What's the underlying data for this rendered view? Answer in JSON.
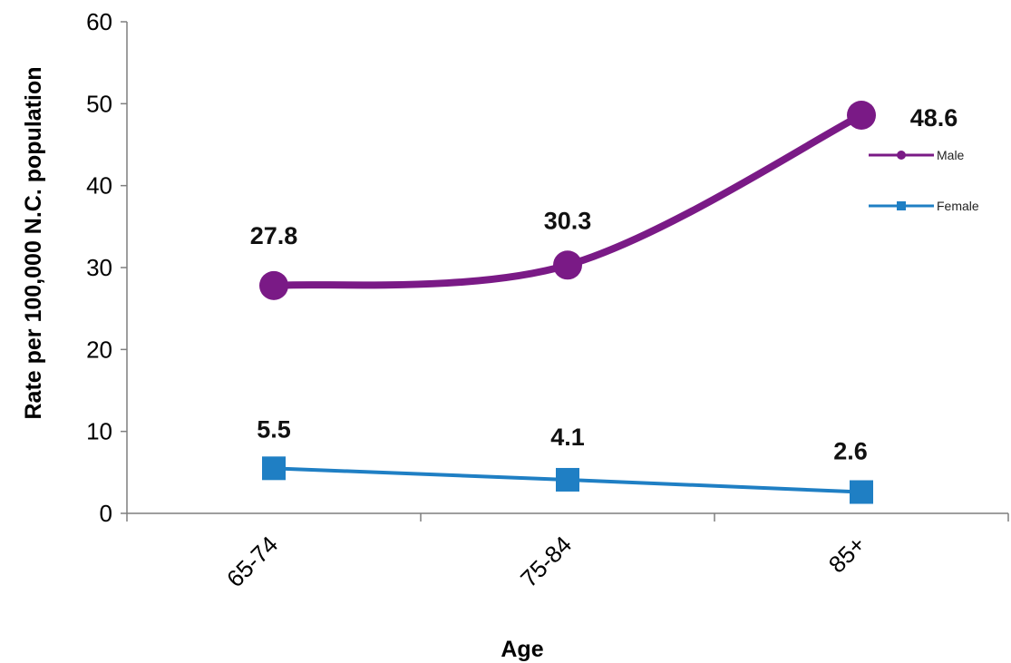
{
  "chart_data": {
    "type": "line",
    "categories": [
      "65-74",
      "75-84",
      "85+"
    ],
    "series": [
      {
        "name": "Male",
        "values": [
          27.8,
          30.3,
          48.6
        ],
        "color": "#7a1a86",
        "marker": "circle",
        "smooth": true
      },
      {
        "name": "Female",
        "values": [
          5.5,
          4.1,
          2.6
        ],
        "color": "#1f7fc4",
        "marker": "square",
        "smooth": false
      }
    ],
    "data_labels": [
      [
        "27.8",
        "30.3",
        "48.6"
      ],
      [
        "5.5",
        "4.1",
        "2.6"
      ]
    ],
    "xlabel": "Age",
    "ylabel": "Rate per 100,000 N.C. population",
    "ylim": [
      0,
      60
    ],
    "yticks": [
      "0",
      "10",
      "20",
      "30",
      "40",
      "50",
      "60"
    ],
    "grid": false,
    "legend": "right"
  }
}
